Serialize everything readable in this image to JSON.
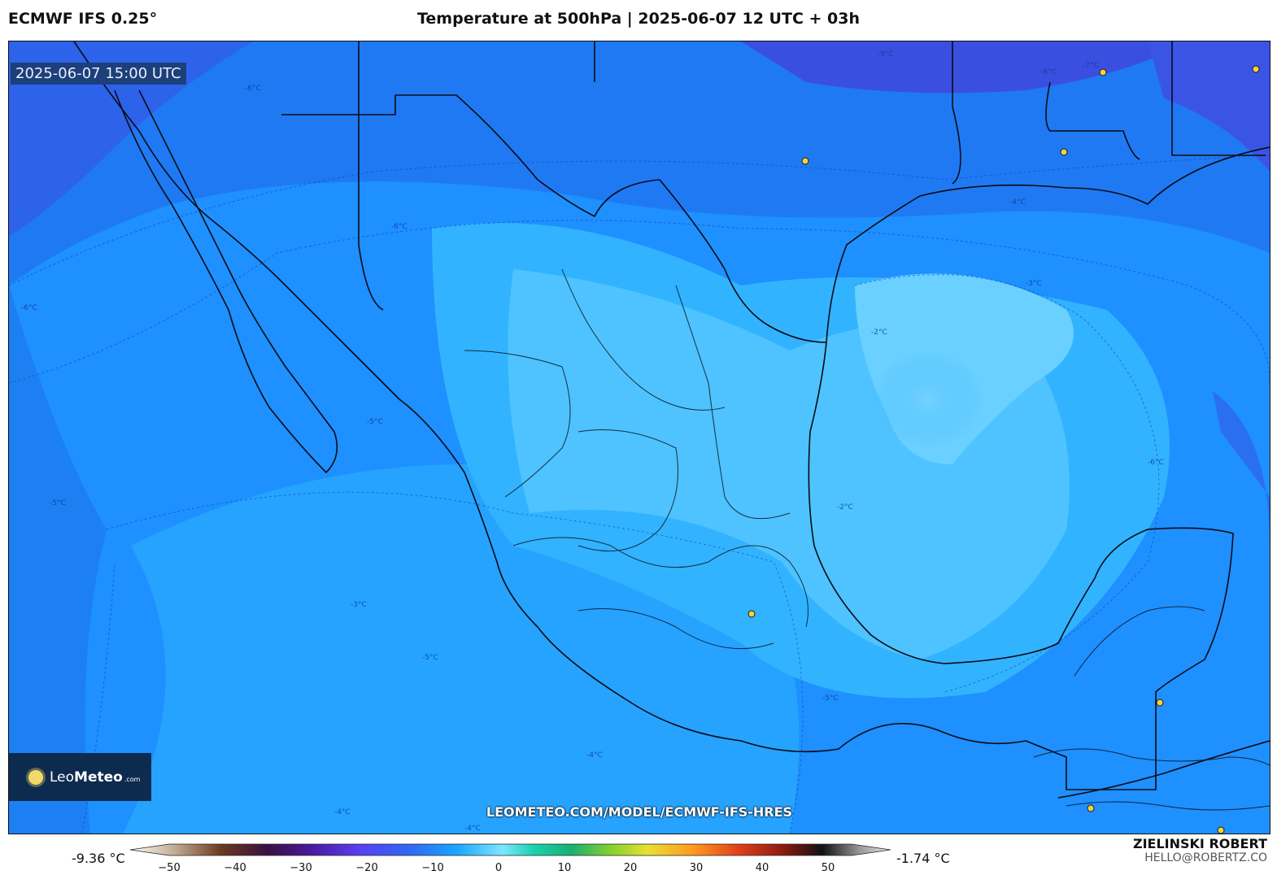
{
  "header": {
    "model": "ECMWF IFS 0.25°",
    "title": "Temperature at 500hPa | 2025-06-07 12 UTC + 03h"
  },
  "map": {
    "valid_time": "2025-06-07 15:00 UTC",
    "website_overlay": "LEOMETEO.COM/MODEL/ECMWF-IFS-HRES",
    "contour_labels": [
      "-9°C",
      "-8°C",
      "-7°C",
      "-6°C",
      "-5°C",
      "-4°C",
      "-3°C",
      "-2°C"
    ],
    "region": "Mexico and Gulf of Mexico"
  },
  "logo": {
    "brand_light": "Leo",
    "brand_bold": "Meteo",
    "suffix": ".com"
  },
  "colorbar": {
    "min_label": "-9.36 °C",
    "max_label": "-1.74 °C",
    "ticks": [
      "−50",
      "−40",
      "−30",
      "−20",
      "−10",
      "0",
      "10",
      "20",
      "30",
      "40",
      "50"
    ],
    "unit": "°C"
  },
  "credit": {
    "name": "ZIELINSKI ROBERT",
    "email": "HELLO@ROBERTZ.CO"
  },
  "colors": {
    "cold": "#2f5be8",
    "mid": "#1fa8ff",
    "warm": "#6fd0ff"
  }
}
